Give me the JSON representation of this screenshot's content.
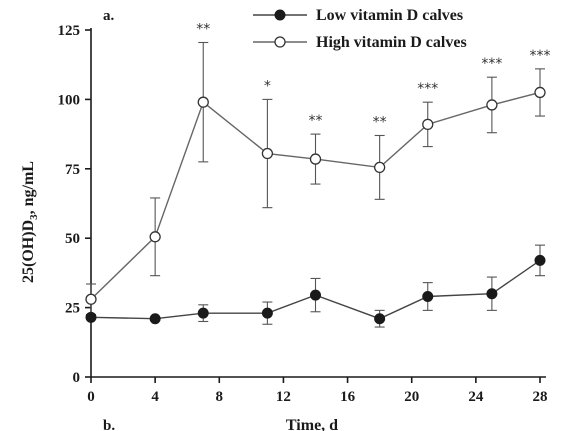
{
  "chart_data": {
    "type": "line",
    "panel_labels": [
      "a.",
      "b."
    ],
    "xlabel": "Time, d",
    "ylabel_main": "25(OH)D",
    "ylabel_sub": "3",
    "ylabel_tail": ", ng/mL",
    "xlim": [
      0,
      28
    ],
    "ylim": [
      0,
      125
    ],
    "x_ticks": [
      0,
      4,
      8,
      12,
      16,
      20,
      24,
      28
    ],
    "y_ticks": [
      0,
      25,
      50,
      75,
      100,
      125
    ],
    "legend_position": "top-center",
    "grid": false,
    "series": [
      {
        "name": "Low vitamin D calves",
        "marker": "filled-circle",
        "color": "#1a1a1a",
        "x": [
          0,
          4,
          7,
          11,
          14,
          18,
          21,
          25,
          28
        ],
        "y": [
          21.5,
          21,
          23,
          23,
          29.5,
          21,
          29,
          30,
          42
        ],
        "err": [
          0,
          0,
          3,
          4,
          6,
          3,
          5,
          6,
          5.5
        ]
      },
      {
        "name": "High vitamin D calves",
        "marker": "open-circle",
        "color": "#333333",
        "x": [
          0,
          4,
          7,
          11,
          14,
          18,
          21,
          25,
          28
        ],
        "y": [
          28,
          50.5,
          99,
          80.5,
          78.5,
          75.5,
          91,
          98,
          102.5
        ],
        "err": [
          5.5,
          14,
          21.5,
          19.5,
          9,
          11.5,
          8,
          10,
          8.5
        ]
      }
    ],
    "annotations": [
      {
        "x": 7,
        "text": "**"
      },
      {
        "x": 11,
        "text": "*"
      },
      {
        "x": 14,
        "text": "**"
      },
      {
        "x": 18,
        "text": "**"
      },
      {
        "x": 21,
        "text": "***"
      },
      {
        "x": 25,
        "text": "***"
      },
      {
        "x": 28,
        "text": "***"
      }
    ]
  }
}
